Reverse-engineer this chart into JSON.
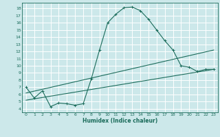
{
  "title": "",
  "xlabel": "Humidex (Indice chaleur)",
  "ylabel": "",
  "bg_color": "#cce8ea",
  "grid_color": "#ffffff",
  "line_color": "#1a6b5a",
  "xlim": [
    -0.5,
    23.5
  ],
  "ylim": [
    3.5,
    18.8
  ],
  "xticks": [
    0,
    1,
    2,
    3,
    4,
    5,
    6,
    7,
    8,
    9,
    10,
    11,
    12,
    13,
    14,
    15,
    16,
    17,
    18,
    19,
    20,
    21,
    22,
    23
  ],
  "yticks": [
    4,
    5,
    6,
    7,
    8,
    9,
    10,
    11,
    12,
    13,
    14,
    15,
    16,
    17,
    18
  ],
  "line1_x": [
    0,
    1,
    2,
    3,
    4,
    5,
    6,
    7,
    8,
    9,
    10,
    11,
    12,
    13,
    14,
    15,
    16,
    17,
    18,
    19,
    20,
    21,
    22,
    23
  ],
  "line1_y": [
    7.0,
    5.5,
    6.5,
    4.3,
    4.8,
    4.7,
    4.5,
    4.7,
    8.2,
    12.2,
    16.0,
    17.2,
    18.1,
    18.2,
    17.7,
    16.5,
    15.0,
    13.5,
    12.2,
    10.0,
    9.8,
    9.2,
    9.5,
    9.5
  ],
  "line2_x": [
    0,
    23
  ],
  "line2_y": [
    5.2,
    9.5
  ],
  "line3_x": [
    0,
    23
  ],
  "line3_y": [
    6.2,
    12.2
  ],
  "marker": "+"
}
